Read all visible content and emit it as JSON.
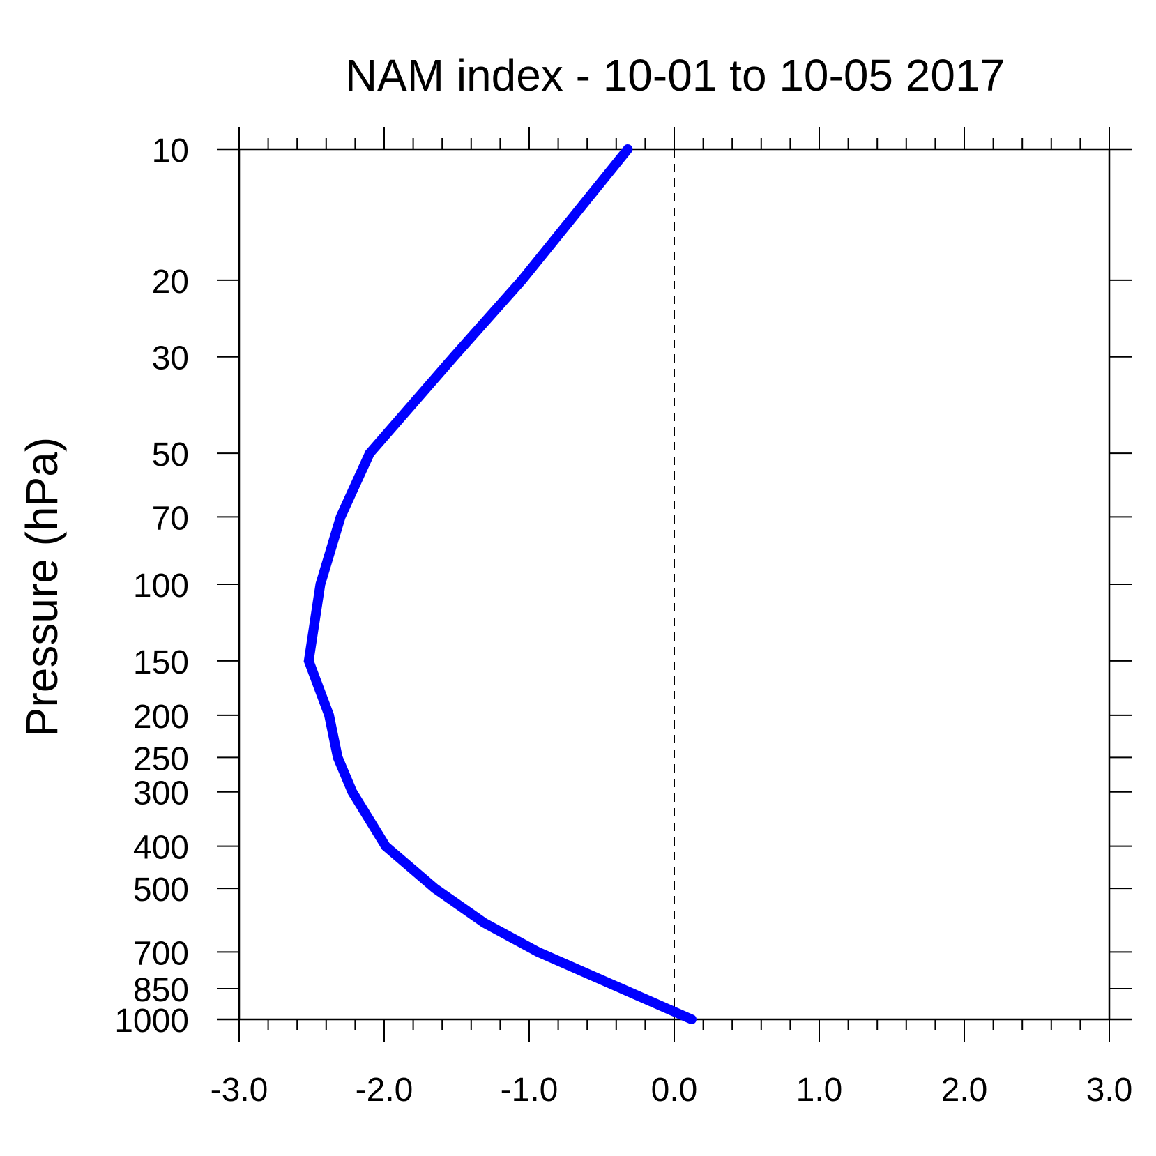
{
  "chart_data": {
    "type": "line",
    "title": "NAM index - 10-01 to 10-05 2017",
    "xlabel": "",
    "ylabel": "Pressure (hPa)",
    "xlim": [
      -3.0,
      3.0
    ],
    "ylim": [
      1000,
      10
    ],
    "y_scale": "log",
    "y_inverted": true,
    "grid": false,
    "legend": "none",
    "x_tick_labels": [
      "-3.0",
      "-2.0",
      "-1.0",
      "0.0",
      "1.0",
      "2.0",
      "3.0"
    ],
    "x_ticks": [
      -3.0,
      -2.0,
      -1.0,
      0.0,
      1.0,
      2.0,
      3.0
    ],
    "x_minor_step": 0.2,
    "y_ticks": [
      10,
      20,
      30,
      50,
      70,
      100,
      150,
      200,
      250,
      300,
      400,
      500,
      700,
      850,
      1000
    ],
    "y_tick_labels": [
      "10",
      "20",
      "30",
      "50",
      "70",
      "100",
      "150",
      "200",
      "250",
      "300",
      "400",
      "500",
      "700",
      "850",
      "1000"
    ],
    "reference_line": {
      "x": 0.0,
      "style": "dashed",
      "color": "#000000"
    },
    "series": [
      {
        "color": "#0000ff",
        "x": [
          -0.32,
          -1.05,
          -1.52,
          -2.1,
          -2.3,
          -2.44,
          -2.52,
          -2.38,
          -2.32,
          -2.22,
          -1.99,
          -1.65,
          -1.31,
          -0.94,
          0.12
        ],
        "y": [
          10,
          20,
          30,
          50,
          70,
          100,
          150,
          200,
          250,
          300,
          400,
          500,
          600,
          700,
          1000
        ]
      }
    ]
  }
}
